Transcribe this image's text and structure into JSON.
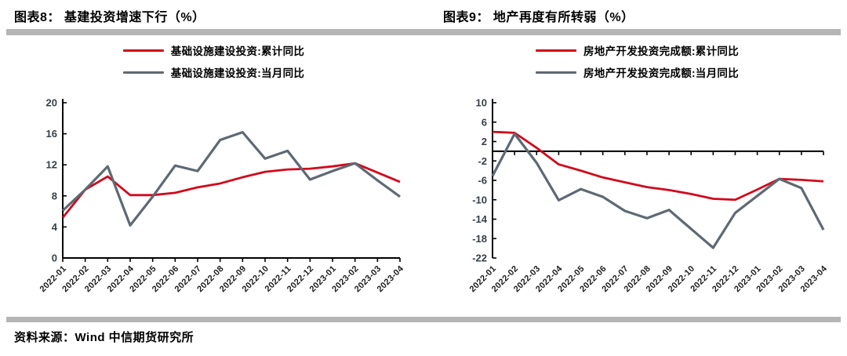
{
  "source_note": "资料来源：Wind 中信期货研究所",
  "colors": {
    "accent_red": "#d2081c",
    "line_gray": "#5e6974",
    "divider_gray": "#b5b5b5",
    "axis_black": "#000000",
    "y_tick_label": "#353f49"
  },
  "chart_data": [
    {
      "type": "line",
      "title": "图表8： 基建投资增速下行（%）",
      "xlabel": "",
      "ylabel": "",
      "ylim": [
        0,
        20
      ],
      "yticks": [
        20,
        16,
        12,
        8,
        4,
        0
      ],
      "grid": false,
      "legend_position": "top",
      "categories": [
        "2022-01",
        "2022-02",
        "2022-03",
        "2022-04",
        "2022-05",
        "2022-06",
        "2022-07",
        "2022-08",
        "2022-09",
        "2022-10",
        "2022-11",
        "2022-12",
        "2023-01",
        "2023-02",
        "2023-03",
        "2023-04"
      ],
      "series": [
        {
          "name": "基础设施建设投资:累计同比",
          "color": "#d2081c",
          "values": [
            5.2,
            8.8,
            10.5,
            8.1,
            8.1,
            8.4,
            9.1,
            9.6,
            10.4,
            11.1,
            11.4,
            11.5,
            11.8,
            12.2,
            11.0,
            9.8
          ]
        },
        {
          "name": "基础设施建设投资:当月同比",
          "color": "#5e6974",
          "values": [
            6.1,
            8.8,
            11.8,
            4.2,
            7.9,
            11.9,
            11.2,
            15.2,
            16.2,
            12.8,
            13.8,
            10.1,
            11.2,
            12.2,
            10.0,
            7.9
          ]
        }
      ]
    },
    {
      "type": "line",
      "title": "图表9： 地产再度有所转弱（%）",
      "xlabel": "",
      "ylabel": "",
      "ylim": [
        -22,
        10
      ],
      "yticks": [
        10,
        6,
        2,
        -2,
        -6,
        -10,
        -14,
        -18,
        -22
      ],
      "grid": false,
      "legend_position": "top",
      "categories": [
        "2022-01",
        "2022-02",
        "2022-03",
        "2022-04",
        "2022-05",
        "2022-06",
        "2022-07",
        "2022-08",
        "2022-09",
        "2022-10",
        "2022-11",
        "2022-12",
        "2023-01",
        "2023-02",
        "2023-03",
        "2023-04"
      ],
      "series": [
        {
          "name": "房地产开发投资完成额:累计同比",
          "color": "#d2081c",
          "values": [
            4.0,
            3.8,
            0.7,
            -2.7,
            -4.0,
            -5.4,
            -6.4,
            -7.4,
            -8.0,
            -8.8,
            -9.8,
            -10.0,
            -7.9,
            -5.7,
            -5.9,
            -6.2
          ]
        },
        {
          "name": "房地产开发投资完成额:当月同比",
          "color": "#5e6974",
          "values": [
            -5.1,
            3.6,
            -2.4,
            -10.1,
            -7.8,
            -9.4,
            -12.3,
            -13.8,
            -12.1,
            -16.0,
            -19.9,
            -12.7,
            -9.2,
            -5.7,
            -7.6,
            -16.2
          ]
        }
      ]
    }
  ]
}
